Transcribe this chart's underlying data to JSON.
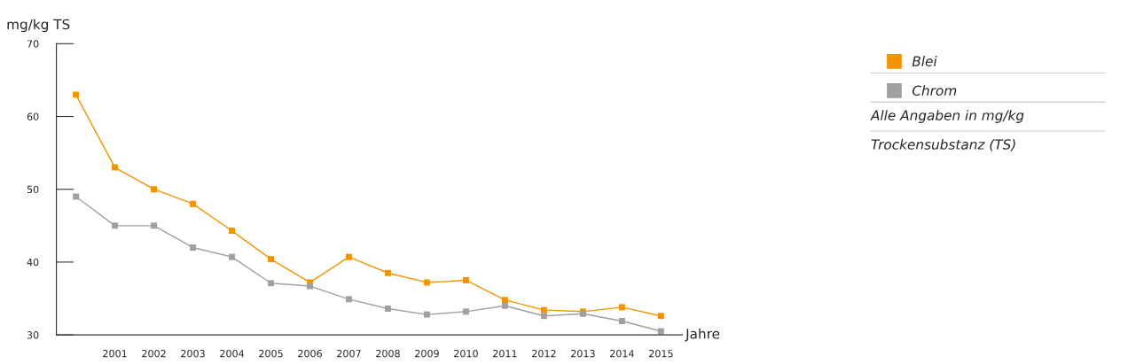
{
  "chart_data": {
    "type": "line",
    "xlabel": "Jahre",
    "ylabel": "mg/kg TS",
    "categories": [
      null,
      "2001",
      "2002",
      "2003",
      "2004",
      "2005",
      "2006",
      "2007",
      "2008",
      "2009",
      "2010",
      "2011",
      "2012",
      "2013",
      "2014",
      "2015"
    ],
    "series": [
      {
        "name": "Blei",
        "color": "#f29400",
        "values": [
          63,
          53,
          50,
          48,
          44.3,
          40.4,
          37.2,
          40.7,
          38.5,
          37.2,
          37.5,
          34.8,
          33.4,
          33.2,
          33.8,
          32.6
        ]
      },
      {
        "name": "Chrom",
        "color": "#a0a0a0",
        "values": [
          49,
          45,
          45,
          42,
          40.7,
          37.1,
          36.7,
          34.9,
          33.6,
          32.8,
          33.2,
          34,
          32.6,
          32.9,
          31.9,
          30.5
        ]
      }
    ],
    "ylim": [
      30,
      70
    ],
    "yticks": [
      30,
      40,
      50,
      60,
      70
    ],
    "grid": false,
    "legend": "right",
    "marker": "square",
    "line_style": "solid",
    "annotations": [
      "Alle Angaben in mg/kg",
      "Trockensubstanz (TS)"
    ]
  }
}
